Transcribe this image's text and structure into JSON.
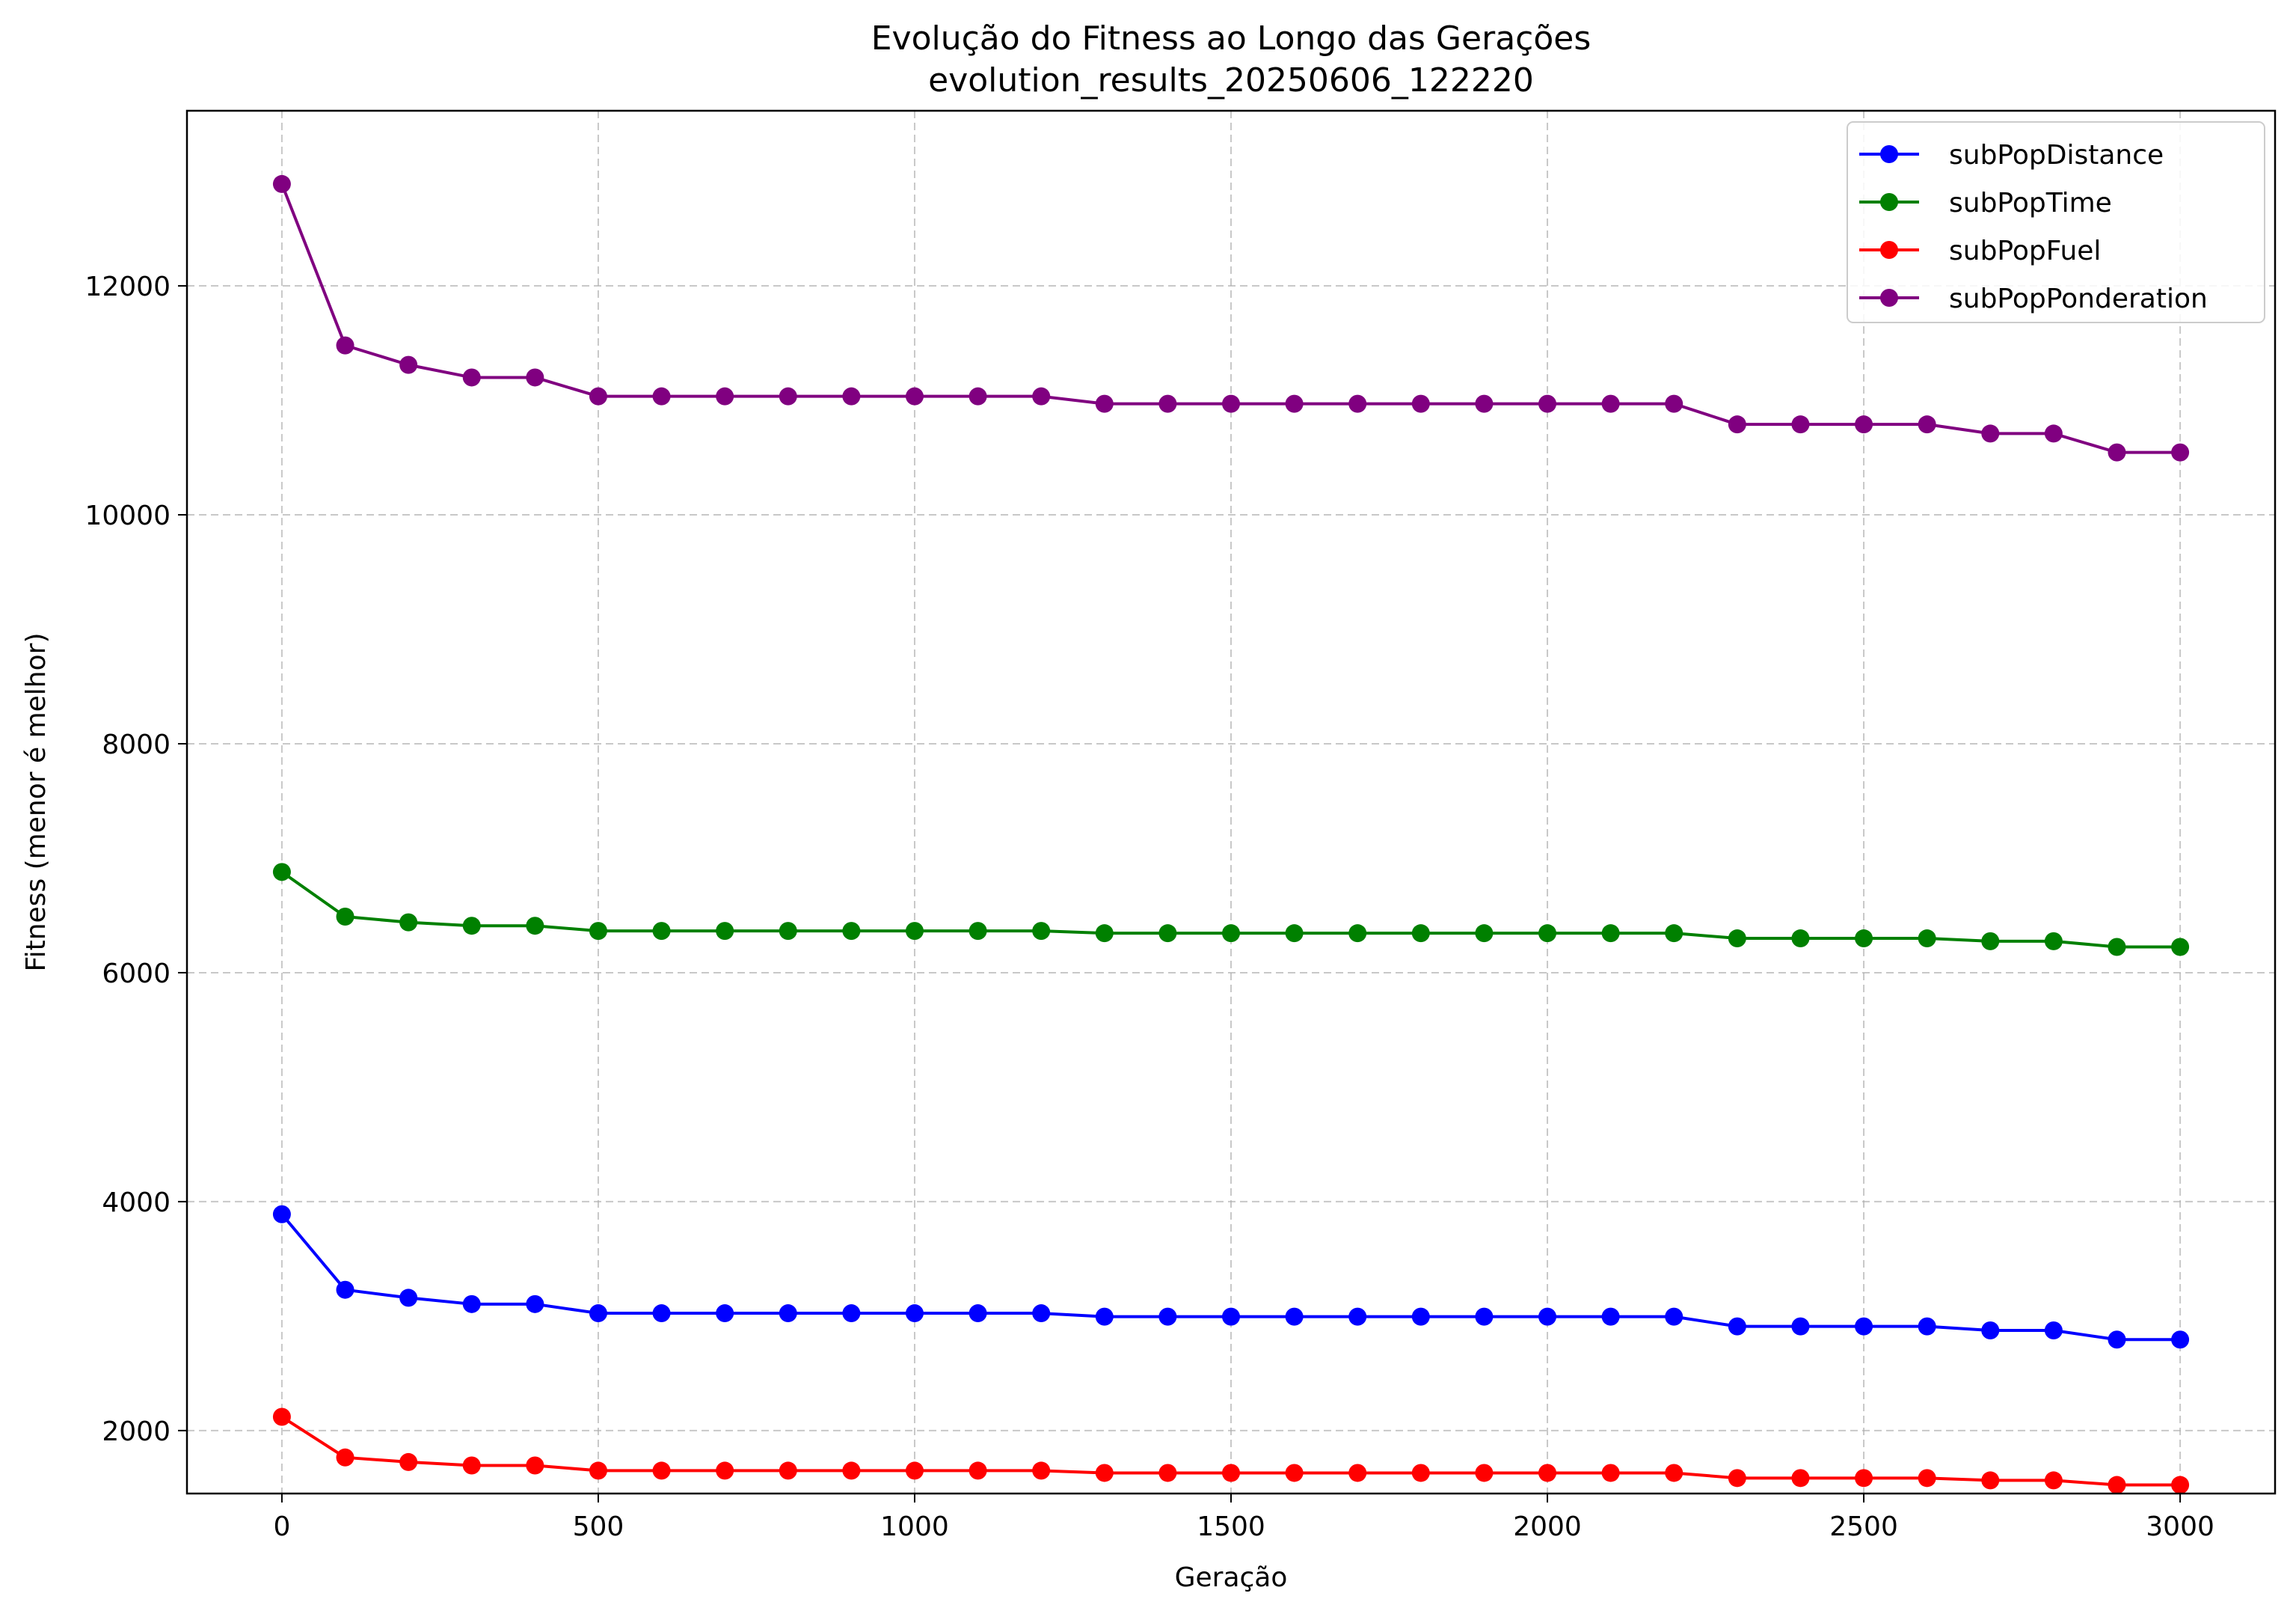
{
  "chart_data": {
    "type": "line",
    "title": "Evolução do Fitness ao Longo das Gerações",
    "subtitle": "evolution_results_20250606_122220",
    "xlabel": "Geração",
    "ylabel": "Fitness (menor é melhor)",
    "xlim": [
      -150,
      3150
    ],
    "ylim": [
      1450,
      13530
    ],
    "xticks": [
      0,
      500,
      1000,
      1500,
      2000,
      2500,
      3000
    ],
    "yticks": [
      2000,
      4000,
      6000,
      8000,
      10000,
      12000
    ],
    "grid": true,
    "legend_position": "top-right",
    "x": [
      0,
      100,
      200,
      300,
      400,
      500,
      600,
      700,
      800,
      900,
      1000,
      1100,
      1200,
      1300,
      1400,
      1500,
      1600,
      1700,
      1800,
      1900,
      2000,
      2100,
      2200,
      2300,
      2400,
      2500,
      2600,
      2700,
      2800,
      2900,
      3000
    ],
    "series": [
      {
        "name": "subPopDistance",
        "color": "#0000ff",
        "values": [
          3890,
          3230,
          3160,
          3105,
          3105,
          3025,
          3025,
          3025,
          3025,
          3025,
          3025,
          3025,
          3025,
          2995,
          2995,
          2995,
          2995,
          2995,
          2995,
          2995,
          2995,
          2995,
          2995,
          2910,
          2910,
          2910,
          2910,
          2875,
          2875,
          2795,
          2795
        ]
      },
      {
        "name": "subPopTime",
        "color": "#008000",
        "values": [
          6880,
          6490,
          6440,
          6410,
          6410,
          6365,
          6365,
          6365,
          6365,
          6365,
          6365,
          6365,
          6365,
          6345,
          6345,
          6345,
          6345,
          6345,
          6345,
          6345,
          6345,
          6345,
          6345,
          6300,
          6300,
          6300,
          6300,
          6275,
          6275,
          6225,
          6225
        ]
      },
      {
        "name": "subPopFuel",
        "color": "#ff0000",
        "values": [
          2120,
          1765,
          1725,
          1695,
          1695,
          1650,
          1650,
          1650,
          1650,
          1650,
          1650,
          1650,
          1650,
          1630,
          1630,
          1630,
          1630,
          1630,
          1630,
          1630,
          1630,
          1630,
          1630,
          1585,
          1585,
          1585,
          1585,
          1565,
          1565,
          1525,
          1525
        ]
      },
      {
        "name": "subPopPonderation",
        "color": "#800080",
        "values": [
          12890,
          11480,
          11310,
          11200,
          11200,
          11035,
          11035,
          11035,
          11035,
          11035,
          11035,
          11035,
          11035,
          10970,
          10970,
          10970,
          10970,
          10970,
          10970,
          10970,
          10970,
          10970,
          10970,
          10790,
          10790,
          10790,
          10790,
          10710,
          10710,
          10545,
          10545
        ]
      }
    ]
  }
}
